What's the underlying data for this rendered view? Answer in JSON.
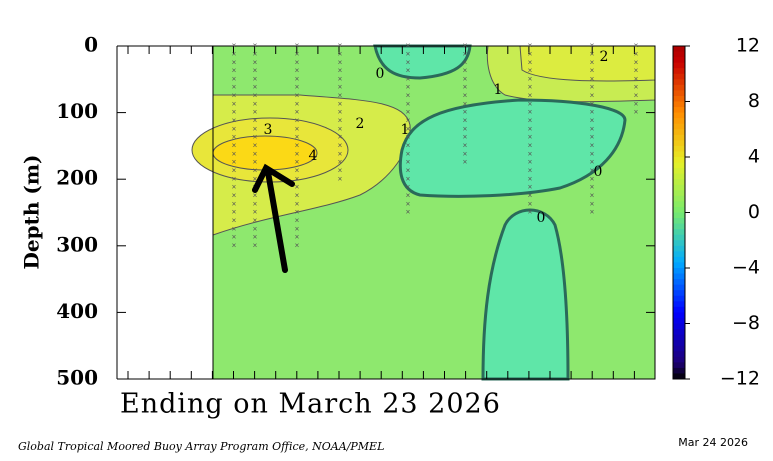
{
  "chart_data": {
    "type": "contour",
    "title": "Ending on March 23 2026",
    "ylabel": "Depth (m)",
    "ylim": [
      0,
      500
    ],
    "yticks": [
      0,
      100,
      200,
      300,
      400,
      500
    ],
    "zlim": [
      -12,
      12
    ],
    "zticks": [
      {
        "value": -12,
        "label": "−12"
      },
      {
        "value": -8,
        "label": "−8"
      },
      {
        "value": -4,
        "label": "−4"
      },
      0,
      4,
      8,
      12
    ],
    "contour_labels": [
      0,
      1,
      2,
      3,
      4,
      1,
      2,
      0,
      0
    ],
    "footer_left": "Global Tropical Moored Buoy Array Program Office, NOAA/PMEL",
    "footer_right": "Mar 24 2026"
  }
}
